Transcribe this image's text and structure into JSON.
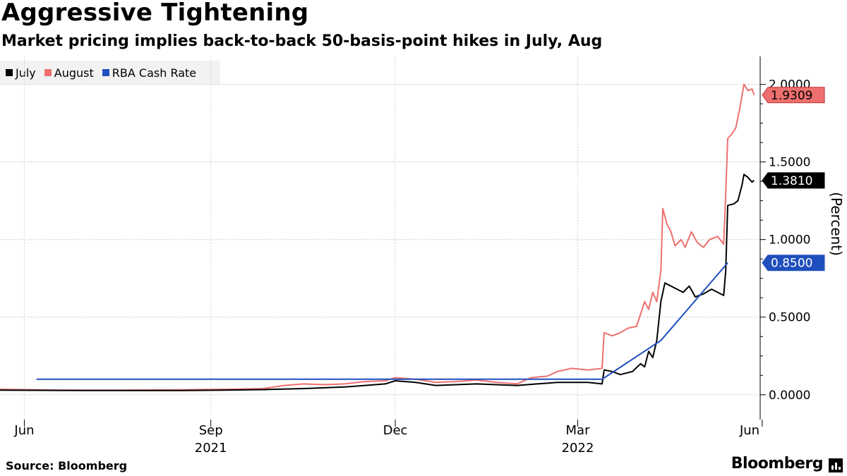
{
  "header": {
    "title": "Aggressive Tightening",
    "subtitle": "Market pricing implies back-to-back 50-basis-point hikes in July, Aug"
  },
  "footer": {
    "source": "Source: Bloomberg",
    "brand": "Bloomberg"
  },
  "chart_data": {
    "type": "line",
    "ylabel": "(Percent)",
    "ylim": [
      -0.16,
      2.18
    ],
    "yticks": [
      "2.0000",
      "1.5000",
      "1.0000",
      "0.5000",
      "0.0000"
    ],
    "ytick_values": [
      2.0,
      1.5,
      1.0,
      0.5,
      0.0
    ],
    "xlim": [
      0,
      375
    ],
    "xticks": [
      {
        "t": 12,
        "label": "Jun"
      },
      {
        "t": 104,
        "label": "Sep",
        "year": "2021"
      },
      {
        "t": 195,
        "label": "Dec"
      },
      {
        "t": 285,
        "label": "Mar",
        "year": "2022"
      },
      {
        "t": 376,
        "label": "Jun"
      }
    ],
    "legend": {
      "placement": "top-left",
      "entries": [
        "July",
        "August",
        "RBA Cash Rate"
      ]
    },
    "series": [
      {
        "name": "July",
        "color": "#000000",
        "last_label": "1.3810",
        "points": [
          [
            0,
            0.03
          ],
          [
            30,
            0.028
          ],
          [
            60,
            0.027
          ],
          [
            90,
            0.027
          ],
          [
            110,
            0.03
          ],
          [
            130,
            0.033
          ],
          [
            150,
            0.04
          ],
          [
            170,
            0.05
          ],
          [
            180,
            0.06
          ],
          [
            190,
            0.07
          ],
          [
            195,
            0.09
          ],
          [
            205,
            0.08
          ],
          [
            215,
            0.06
          ],
          [
            225,
            0.065
          ],
          [
            235,
            0.07
          ],
          [
            245,
            0.065
          ],
          [
            255,
            0.06
          ],
          [
            265,
            0.07
          ],
          [
            275,
            0.08
          ],
          [
            290,
            0.08
          ],
          [
            297,
            0.07
          ],
          [
            298,
            0.16
          ],
          [
            302,
            0.15
          ],
          [
            306,
            0.13
          ],
          [
            312,
            0.15
          ],
          [
            316,
            0.2
          ],
          [
            318,
            0.18
          ],
          [
            320,
            0.28
          ],
          [
            322,
            0.24
          ],
          [
            324,
            0.35
          ],
          [
            326,
            0.6
          ],
          [
            328,
            0.72
          ],
          [
            331,
            0.7
          ],
          [
            334,
            0.68
          ],
          [
            337,
            0.66
          ],
          [
            340,
            0.7
          ],
          [
            343,
            0.63
          ],
          [
            347,
            0.65
          ],
          [
            351,
            0.68
          ],
          [
            354,
            0.66
          ],
          [
            357,
            0.64
          ],
          [
            358,
            0.8
          ],
          [
            359,
            1.22
          ],
          [
            362,
            1.23
          ],
          [
            364,
            1.25
          ],
          [
            366,
            1.35
          ],
          [
            367,
            1.42
          ],
          [
            369,
            1.4
          ],
          [
            371,
            1.37
          ],
          [
            372,
            1.381
          ]
        ]
      },
      {
        "name": "August",
        "color": "#ee6f6f",
        "last_label": "1.9309",
        "points": [
          [
            0,
            0.035
          ],
          [
            30,
            0.03
          ],
          [
            60,
            0.03
          ],
          [
            90,
            0.032
          ],
          [
            110,
            0.035
          ],
          [
            130,
            0.04
          ],
          [
            140,
            0.06
          ],
          [
            150,
            0.07
          ],
          [
            160,
            0.065
          ],
          [
            170,
            0.07
          ],
          [
            180,
            0.085
          ],
          [
            190,
            0.09
          ],
          [
            195,
            0.11
          ],
          [
            205,
            0.1
          ],
          [
            215,
            0.08
          ],
          [
            225,
            0.085
          ],
          [
            235,
            0.095
          ],
          [
            245,
            0.08
          ],
          [
            255,
            0.07
          ],
          [
            262,
            0.11
          ],
          [
            270,
            0.12
          ],
          [
            275,
            0.15
          ],
          [
            282,
            0.17
          ],
          [
            290,
            0.16
          ],
          [
            297,
            0.17
          ],
          [
            298,
            0.4
          ],
          [
            302,
            0.38
          ],
          [
            306,
            0.4
          ],
          [
            310,
            0.43
          ],
          [
            314,
            0.44
          ],
          [
            318,
            0.6
          ],
          [
            320,
            0.55
          ],
          [
            322,
            0.66
          ],
          [
            324,
            0.6
          ],
          [
            326,
            0.8
          ],
          [
            327,
            1.2
          ],
          [
            329,
            1.1
          ],
          [
            331,
            1.05
          ],
          [
            333,
            0.96
          ],
          [
            336,
            1.0
          ],
          [
            338,
            0.95
          ],
          [
            341,
            1.05
          ],
          [
            344,
            0.98
          ],
          [
            347,
            0.95
          ],
          [
            350,
            1.0
          ],
          [
            354,
            1.02
          ],
          [
            357,
            0.97
          ],
          [
            358,
            1.3
          ],
          [
            359,
            1.65
          ],
          [
            361,
            1.68
          ],
          [
            363,
            1.72
          ],
          [
            365,
            1.85
          ],
          [
            367,
            2.0
          ],
          [
            369,
            1.96
          ],
          [
            371,
            1.97
          ],
          [
            372,
            1.931
          ]
        ]
      },
      {
        "name": "RBA Cash Rate",
        "color": "#1f4fbd",
        "last_label": "0.8500",
        "points": [
          [
            18,
            0.1
          ],
          [
            297,
            0.1
          ],
          [
            326,
            0.35
          ],
          [
            359,
            0.85
          ]
        ]
      }
    ]
  }
}
